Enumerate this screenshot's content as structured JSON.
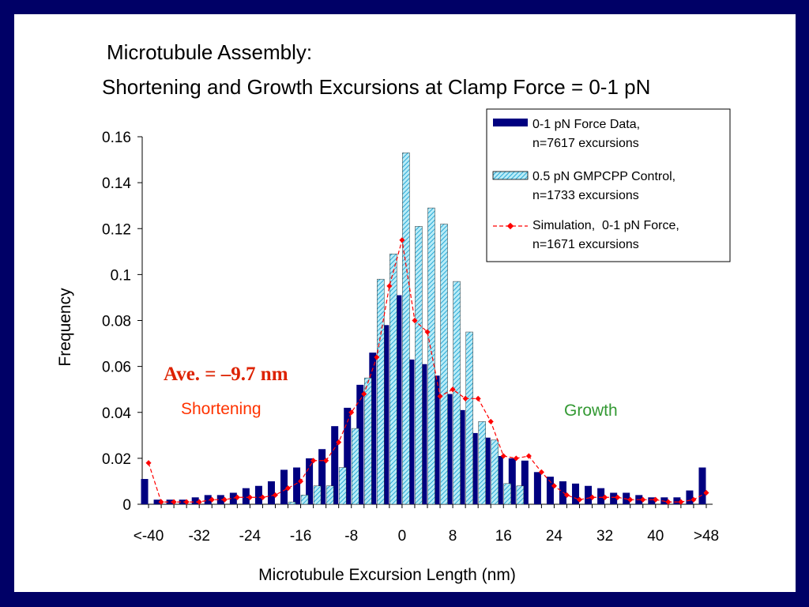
{
  "slide": {
    "title_line1": "Microtubule Assembly:",
    "title_line2": "Shortening and Growth Excursions at Clamp Force = 0-1 pN",
    "annotations": {
      "average": "Ave. = –9.7 nm",
      "shortening": "Shortening",
      "growth": "Growth"
    }
  },
  "colors": {
    "frame": "#000066",
    "force_bar": "#000080",
    "control_fill": "#b9ecf7",
    "control_hatch": "#2aa8d6",
    "simulation": "#ff0000",
    "average_text": "#dd2200",
    "shortening_text": "#ff3300",
    "growth_text": "#339933"
  },
  "chart_data": {
    "type": "bar",
    "xlabel": "Microtubule Excursion Length (nm)",
    "ylabel": "Frequency",
    "ylim": [
      0,
      0.16
    ],
    "yticks": [
      "0",
      "0.02",
      "0.04",
      "0.06",
      "0.08",
      "0.1",
      "0.12",
      "0.14",
      "0.16"
    ],
    "xtick_labels": [
      "<-40",
      "-32",
      "-24",
      "-16",
      "-8",
      "0",
      "8",
      "16",
      "24",
      "32",
      "40",
      ">48"
    ],
    "categories": [
      -40,
      -38,
      -36,
      -34,
      -32,
      -30,
      -28,
      -26,
      -24,
      -22,
      -20,
      -18,
      -16,
      -14,
      -12,
      -10,
      -8,
      -6,
      -4,
      -2,
      0,
      2,
      4,
      6,
      8,
      10,
      12,
      14,
      16,
      18,
      20,
      22,
      24,
      26,
      28,
      30,
      32,
      34,
      36,
      38,
      40,
      42,
      44,
      46,
      48
    ],
    "legend_position": "top-right",
    "series": [
      {
        "name": "0-1 pN Force Data,",
        "name_line2": "n=7617 excursions",
        "kind": "bar",
        "values": [
          0.011,
          0.002,
          0.002,
          0.002,
          0.003,
          0.004,
          0.004,
          0.005,
          0.007,
          0.008,
          0.01,
          0.015,
          0.016,
          0.02,
          0.024,
          0.034,
          0.042,
          0.052,
          0.066,
          0.078,
          0.091,
          0.063,
          0.061,
          0.056,
          0.048,
          0.041,
          0.031,
          0.029,
          0.021,
          0.02,
          0.019,
          0.014,
          0.012,
          0.01,
          0.009,
          0.008,
          0.007,
          0.005,
          0.005,
          0.004,
          0.003,
          0.003,
          0.003,
          0.006,
          0.016
        ]
      },
      {
        "name": "0.5 pN GMPCPP Control,",
        "name_line2": "n=1733 excursions",
        "kind": "hatched-bar",
        "values": [
          0,
          0,
          0,
          0,
          0,
          0,
          0,
          0,
          0,
          0,
          0,
          0.001,
          0.004,
          0.008,
          0.008,
          0.016,
          0.033,
          0.055,
          0.098,
          0.109,
          0.153,
          0.121,
          0.129,
          0.122,
          0.097,
          0.075,
          0.036,
          0.028,
          0.009,
          0.008,
          0,
          0,
          0,
          0,
          0,
          0,
          0,
          0,
          0,
          0,
          0,
          0,
          0,
          0,
          0
        ]
      },
      {
        "name": "Simulation,  0-1 pN Force,",
        "name_line2": "n=1671 excursions",
        "kind": "dashed-line",
        "values": [
          0.018,
          0.001,
          0.001,
          0.001,
          0.001,
          0.002,
          0.002,
          0.003,
          0.003,
          0.003,
          0.004,
          0.007,
          0.01,
          0.019,
          0.019,
          0.027,
          0.04,
          0.048,
          0.064,
          0.095,
          0.115,
          0.08,
          0.075,
          0.047,
          0.05,
          0.046,
          0.046,
          0.036,
          0.021,
          0.02,
          0.021,
          0.014,
          0.008,
          0.004,
          0.002,
          0.003,
          0.003,
          0.003,
          0.002,
          0.002,
          0.002,
          0.001,
          0.001,
          0.002,
          0.005
        ]
      }
    ]
  }
}
